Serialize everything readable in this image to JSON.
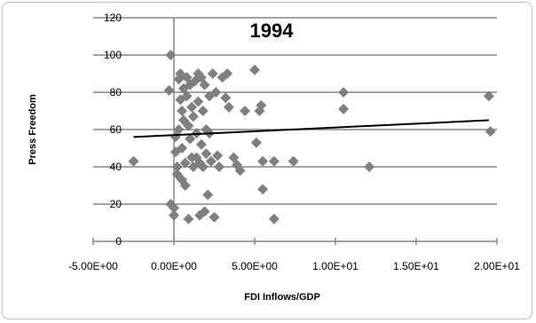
{
  "chart_data": {
    "type": "scatter",
    "title": "1994",
    "xlabel": "FDI Inflows/GDP",
    "ylabel": "Press Freedom",
    "xlim": [
      -5,
      20
    ],
    "ylim": [
      0,
      120
    ],
    "x_ticks": [
      -5,
      0,
      5,
      10,
      15,
      20
    ],
    "x_tick_labels": [
      "-5.00E+00",
      "0.00E+00",
      "5.00E+00",
      "1.00E+01",
      "1.50E+01",
      "2.00E+01"
    ],
    "y_ticks": [
      0,
      20,
      40,
      60,
      80,
      100,
      120
    ],
    "y_tick_labels": [
      "0",
      "20",
      "40",
      "60",
      "80",
      "100",
      "120"
    ],
    "grid": "horizontal",
    "legend": "none",
    "marker": "diamond",
    "marker_color": "#7f7f7f",
    "trendline": {
      "x": [
        -2.5,
        19.5
      ],
      "y": [
        56,
        65
      ],
      "color": "#000000"
    },
    "points": [
      {
        "x": -2.5,
        "y": 43
      },
      {
        "x": -0.2,
        "y": 100
      },
      {
        "x": -0.3,
        "y": 81
      },
      {
        "x": -0.2,
        "y": 20
      },
      {
        "x": 0.0,
        "y": 18
      },
      {
        "x": 0.0,
        "y": 14
      },
      {
        "x": 0.1,
        "y": 56
      },
      {
        "x": 0.1,
        "y": 48
      },
      {
        "x": 0.2,
        "y": 40
      },
      {
        "x": 0.2,
        "y": 36
      },
      {
        "x": 0.3,
        "y": 60
      },
      {
        "x": 0.3,
        "y": 87
      },
      {
        "x": 0.4,
        "y": 90
      },
      {
        "x": 0.4,
        "y": 76
      },
      {
        "x": 0.5,
        "y": 70
      },
      {
        "x": 0.5,
        "y": 50
      },
      {
        "x": 0.5,
        "y": 33
      },
      {
        "x": 0.6,
        "y": 65
      },
      {
        "x": 0.6,
        "y": 82
      },
      {
        "x": 0.7,
        "y": 42
      },
      {
        "x": 0.7,
        "y": 30
      },
      {
        "x": 0.8,
        "y": 88
      },
      {
        "x": 0.8,
        "y": 78
      },
      {
        "x": 0.9,
        "y": 62
      },
      {
        "x": 0.9,
        "y": 12
      },
      {
        "x": 1.0,
        "y": 84
      },
      {
        "x": 1.0,
        "y": 55
      },
      {
        "x": 1.1,
        "y": 72
      },
      {
        "x": 1.1,
        "y": 45
      },
      {
        "x": 1.2,
        "y": 67
      },
      {
        "x": 1.2,
        "y": 40
      },
      {
        "x": 1.3,
        "y": 86
      },
      {
        "x": 1.4,
        "y": 58
      },
      {
        "x": 1.4,
        "y": 45
      },
      {
        "x": 1.5,
        "y": 90
      },
      {
        "x": 1.5,
        "y": 75
      },
      {
        "x": 1.6,
        "y": 42
      },
      {
        "x": 1.6,
        "y": 14
      },
      {
        "x": 1.7,
        "y": 88
      },
      {
        "x": 1.7,
        "y": 52
      },
      {
        "x": 1.8,
        "y": 70
      },
      {
        "x": 1.8,
        "y": 40
      },
      {
        "x": 1.9,
        "y": 84
      },
      {
        "x": 1.9,
        "y": 16
      },
      {
        "x": 2.0,
        "y": 60
      },
      {
        "x": 2.0,
        "y": 47
      },
      {
        "x": 2.1,
        "y": 25
      },
      {
        "x": 2.2,
        "y": 78
      },
      {
        "x": 2.2,
        "y": 58
      },
      {
        "x": 2.3,
        "y": 43
      },
      {
        "x": 2.4,
        "y": 90
      },
      {
        "x": 2.5,
        "y": 13
      },
      {
        "x": 2.6,
        "y": 80
      },
      {
        "x": 2.7,
        "y": 46
      },
      {
        "x": 2.8,
        "y": 40
      },
      {
        "x": 3.0,
        "y": 88
      },
      {
        "x": 3.2,
        "y": 77
      },
      {
        "x": 3.3,
        "y": 90
      },
      {
        "x": 3.4,
        "y": 72
      },
      {
        "x": 3.7,
        "y": 45
      },
      {
        "x": 3.9,
        "y": 41
      },
      {
        "x": 4.1,
        "y": 38
      },
      {
        "x": 4.4,
        "y": 70
      },
      {
        "x": 5.0,
        "y": 92
      },
      {
        "x": 5.1,
        "y": 53
      },
      {
        "x": 5.3,
        "y": 70
      },
      {
        "x": 5.4,
        "y": 73
      },
      {
        "x": 5.5,
        "y": 43
      },
      {
        "x": 5.5,
        "y": 28
      },
      {
        "x": 6.2,
        "y": 43
      },
      {
        "x": 6.2,
        "y": 12
      },
      {
        "x": 7.4,
        "y": 43
      },
      {
        "x": 10.5,
        "y": 80
      },
      {
        "x": 10.5,
        "y": 71
      },
      {
        "x": 12.1,
        "y": 40
      },
      {
        "x": 19.5,
        "y": 78
      },
      {
        "x": 19.6,
        "y": 59
      }
    ]
  }
}
